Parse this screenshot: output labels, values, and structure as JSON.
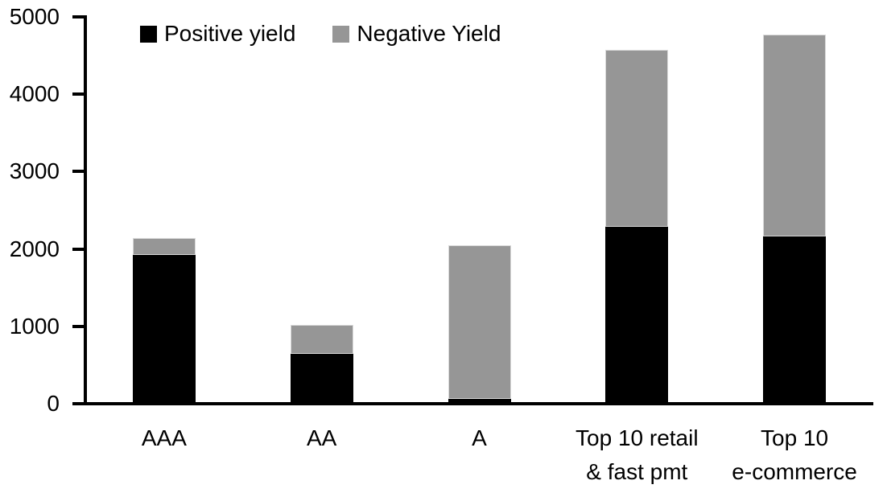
{
  "chart_data": {
    "type": "bar",
    "stacked": true,
    "title": "",
    "categories": [
      "AAA",
      "AA",
      "A",
      "Top 10 retail\n& fast pmt",
      "Top 10\ne-commerce"
    ],
    "series": [
      {
        "name": "Positive yield",
        "color": "#000000",
        "values": [
          1900,
          620,
          40,
          2270,
          2140
        ]
      },
      {
        "name": "Negative Yield",
        "color": "#969696",
        "values": [
          220,
          380,
          1990,
          2280,
          2610
        ]
      }
    ],
    "ylim": [
      0,
      5000
    ],
    "ytick_interval": 1000,
    "ytick_labels": [
      "0",
      "1000",
      "2000",
      "3000",
      "4000",
      "5000"
    ],
    "xlabel": "",
    "ylabel": "",
    "grid": false,
    "legend_position": "top-left-inside",
    "colors": {
      "axis": "#000000",
      "text": "#000000",
      "segment_outline": "#d9d9d9",
      "background": "#ffffff"
    }
  }
}
